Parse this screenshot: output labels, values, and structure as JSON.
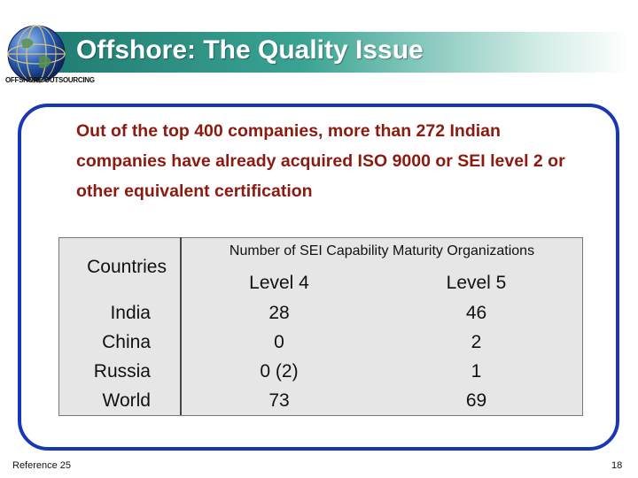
{
  "header": {
    "title": "Offshore: The Quality Issue",
    "sub_label": "OFFSHORE OUTSOURCING"
  },
  "intro_text": "Out of the top 400 companies, more than 272 Indian companies have already acquired ISO 9000 or SEI level 2 or other equivalent certification",
  "table": {
    "col_label": "Countries",
    "group_header": "Number of SEI Capability Maturity Organizations",
    "level_headers": [
      "Level 4",
      "Level 5"
    ],
    "rows": [
      {
        "country": "India",
        "level4": "28",
        "level5": "46"
      },
      {
        "country": "China",
        "level4": "0",
        "level5": "2"
      },
      {
        "country": "Russia",
        "level4": "0 (2)",
        "level5": "1"
      },
      {
        "country": "World",
        "level4": "73",
        "level5": "69"
      }
    ]
  },
  "footer": {
    "reference": "Reference 25",
    "page_number": "18"
  },
  "colors": {
    "title_bar": "#3aa393",
    "frame_border": "#1836b5",
    "intro_text": "#8b1a10",
    "table_bg": "#e6e6e6"
  },
  "icons": {
    "logo": "globe-icon"
  }
}
